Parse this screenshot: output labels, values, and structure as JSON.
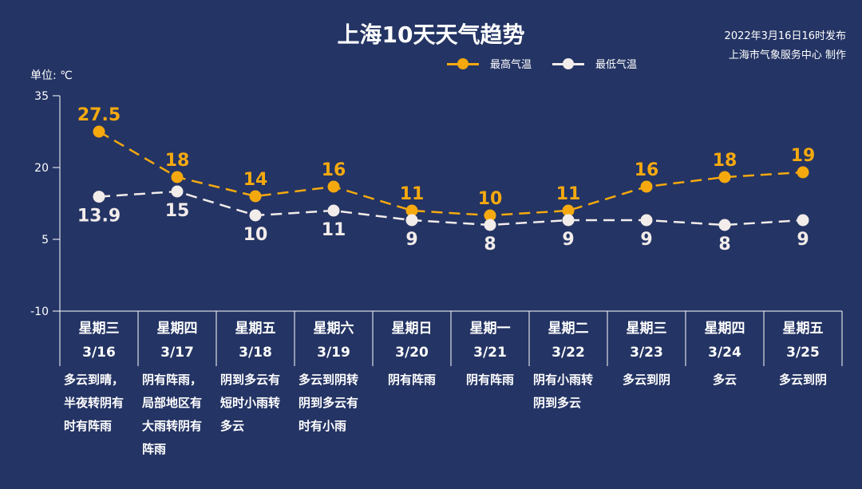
{
  "header": {
    "title": "上海10天天气趋势",
    "published": "2022年3月16日16时发布",
    "producer": "上海市气象服务中心 制作"
  },
  "unit_label": "单位: ℃",
  "legend": [
    {
      "label": "最高气温",
      "color": "#F5A90F"
    },
    {
      "label": "最低气温",
      "color": "#F2ECEA"
    }
  ],
  "colors": {
    "background": "#243464",
    "high": "#F5A90F",
    "low": "#F2ECEA",
    "axis": "#FFFFFF"
  },
  "days": [
    {
      "weekday": "星期三",
      "date": "3/16",
      "desc": "多云到晴，半夜转阴有时有阵雨"
    },
    {
      "weekday": "星期四",
      "date": "3/17",
      "desc": "阴有阵雨，局部地区有大雨转阴有阵雨"
    },
    {
      "weekday": "星期五",
      "date": "3/18",
      "desc": "阴到多云有短时小雨转多云"
    },
    {
      "weekday": "星期六",
      "date": "3/19",
      "desc": "多云到阴转阴到多云有时有小雨"
    },
    {
      "weekday": "星期日",
      "date": "3/20",
      "desc": "阴有阵雨"
    },
    {
      "weekday": "星期一",
      "date": "3/21",
      "desc": "阴有阵雨"
    },
    {
      "weekday": "星期二",
      "date": "3/22",
      "desc": "阴有小雨转阴到多云"
    },
    {
      "weekday": "星期三",
      "date": "3/23",
      "desc": "多云到阴"
    },
    {
      "weekday": "星期四",
      "date": "3/24",
      "desc": "多云"
    },
    {
      "weekday": "星期五",
      "date": "3/25",
      "desc": "多云到阴"
    }
  ],
  "chart_data": {
    "type": "line",
    "title": "上海10天天气趋势",
    "xlabel": "",
    "ylabel": "单位: ℃",
    "categories": [
      "3/16",
      "3/17",
      "3/18",
      "3/19",
      "3/20",
      "3/21",
      "3/22",
      "3/23",
      "3/24",
      "3/25"
    ],
    "series": [
      {
        "name": "最高气温",
        "values": [
          27.5,
          18,
          14,
          16,
          11,
          10,
          11,
          16,
          18,
          19
        ],
        "color": "#F5A90F",
        "style": "dashed",
        "label_position": "above"
      },
      {
        "name": "最低气温",
        "values": [
          13.9,
          15,
          10,
          11,
          9,
          8,
          9,
          9,
          8,
          9
        ],
        "color": "#F2ECEA",
        "style": "dashed",
        "label_position": "below"
      }
    ],
    "ylim": [
      -10,
      35
    ],
    "yticks": [
      -10,
      5,
      20,
      35
    ],
    "grid": false,
    "legend_position": "top-center"
  }
}
